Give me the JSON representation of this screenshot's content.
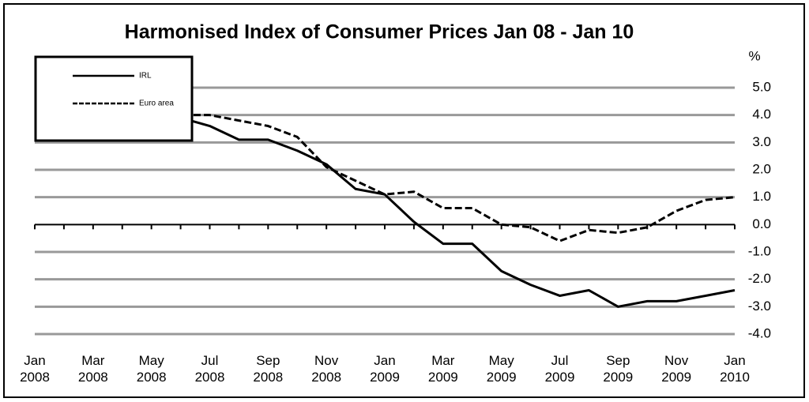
{
  "chart_data": {
    "type": "line",
    "title": "Harmonised Index of Consumer Prices Jan 08 - Jan 10",
    "y_label": "%",
    "categories": [
      "Jan 2008",
      null,
      "Mar 2008",
      null,
      "May 2008",
      null,
      "Jul 2008",
      null,
      "Sep 2008",
      null,
      "Nov 2008",
      null,
      "Jan 2009",
      null,
      "Mar 2009",
      null,
      "May 2009",
      null,
      "Jul 2009",
      null,
      "Sep 2009",
      null,
      "Nov 2009",
      null,
      "Jan 2010"
    ],
    "series": [
      {
        "name": "IRL",
        "color": "#000000",
        "dash": false,
        "values": [
          3.1,
          3.5,
          3.7,
          3.3,
          3.7,
          3.9,
          3.6,
          3.1,
          3.1,
          2.7,
          2.2,
          1.3,
          1.1,
          0.1,
          -0.7,
          -0.7,
          -1.7,
          -2.2,
          -2.6,
          -2.4,
          -3.0,
          -2.8,
          -2.8,
          -2.6,
          -2.4
        ]
      },
      {
        "name": "Euro area",
        "color": "#000000",
        "dash": true,
        "values": [
          3.2,
          3.3,
          3.6,
          3.3,
          3.7,
          4.0,
          4.0,
          3.8,
          3.6,
          3.2,
          2.1,
          1.6,
          1.1,
          1.2,
          0.6,
          0.6,
          0.0,
          -0.1,
          -0.6,
          -0.2,
          -0.3,
          -0.1,
          0.5,
          0.9,
          1.0
        ]
      }
    ],
    "ylim": [
      -4,
      5
    ],
    "yticks": [
      {
        "value": 5,
        "label": "5.0"
      },
      {
        "value": 4,
        "label": "4.0"
      },
      {
        "value": 3,
        "label": "3.0"
      },
      {
        "value": 2,
        "label": "2.0"
      },
      {
        "value": 1,
        "label": "1.0"
      },
      {
        "value": 0,
        "label": "0.0"
      },
      {
        "value": -1,
        "label": "-1.0"
      },
      {
        "value": -2,
        "label": "-2.0"
      },
      {
        "value": -3,
        "label": "-3.0"
      },
      {
        "value": -4,
        "label": "-4.0"
      }
    ],
    "grid": true,
    "legend": "top-left"
  }
}
